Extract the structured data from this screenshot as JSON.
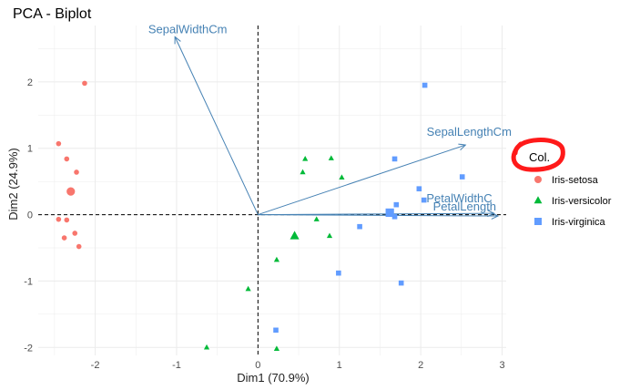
{
  "chart_data": {
    "type": "scatter",
    "title": "PCA - Biplot",
    "xlabel": "Dim1 (70.9%)",
    "ylabel": "Dim2 (24.9%)",
    "xlim": [
      -2.7,
      3.05
    ],
    "ylim": [
      -2.12,
      2.85
    ],
    "xticks": [
      -2,
      -1,
      0,
      1,
      2,
      3
    ],
    "yticks": [
      -2,
      -1,
      0,
      1,
      2
    ],
    "grid": true,
    "legend": {
      "title": "Col.",
      "position": "right"
    },
    "series": [
      {
        "name": "Iris-setosa",
        "color": "#f8766d",
        "marker": "circle",
        "points": [
          [
            -2.13,
            1.98
          ],
          [
            -2.45,
            1.07
          ],
          [
            -2.35,
            0.84
          ],
          [
            -2.23,
            0.64
          ],
          [
            -2.45,
            -0.07
          ],
          [
            -2.35,
            -0.08
          ],
          [
            -2.25,
            -0.28
          ],
          [
            -2.38,
            -0.35
          ],
          [
            -2.2,
            -0.48
          ]
        ],
        "centroid": [
          -2.3,
          0.35
        ]
      },
      {
        "name": "Iris-versicolor",
        "color": "#00ba38",
        "marker": "triangle",
        "points": [
          [
            0.58,
            0.84
          ],
          [
            0.9,
            0.85
          ],
          [
            0.55,
            0.64
          ],
          [
            1.03,
            0.56
          ],
          [
            0.72,
            -0.07
          ],
          [
            0.88,
            -0.32
          ],
          [
            0.23,
            -0.68
          ],
          [
            -0.12,
            -1.12
          ],
          [
            -0.63,
            -2.0
          ],
          [
            0.23,
            -2.02
          ]
        ],
        "centroid": [
          0.45,
          -0.32
        ]
      },
      {
        "name": "Iris-virginica",
        "color": "#619cff",
        "marker": "square",
        "points": [
          [
            2.05,
            1.95
          ],
          [
            1.68,
            0.84
          ],
          [
            2.51,
            0.57
          ],
          [
            1.98,
            0.39
          ],
          [
            2.04,
            0.22
          ],
          [
            1.7,
            0.15
          ],
          [
            1.25,
            -0.18
          ],
          [
            1.68,
            -0.03
          ],
          [
            0.99,
            -0.88
          ],
          [
            1.76,
            -1.03
          ],
          [
            0.22,
            -1.74
          ]
        ],
        "centroid": [
          1.62,
          0.03
        ]
      }
    ],
    "variables": [
      {
        "name": "SepalWidthCm",
        "x": -1.02,
        "y": 2.68
      },
      {
        "name": "SepalLengthCm",
        "x": 2.55,
        "y": 1.05
      },
      {
        "name": "PetalWidthC",
        "x": 2.9,
        "y": 0.02
      },
      {
        "name": "PetalLength",
        "x": 2.95,
        "y": -0.02
      }
    ],
    "annotation": {
      "type": "red-circle",
      "around": "legend-title"
    }
  }
}
